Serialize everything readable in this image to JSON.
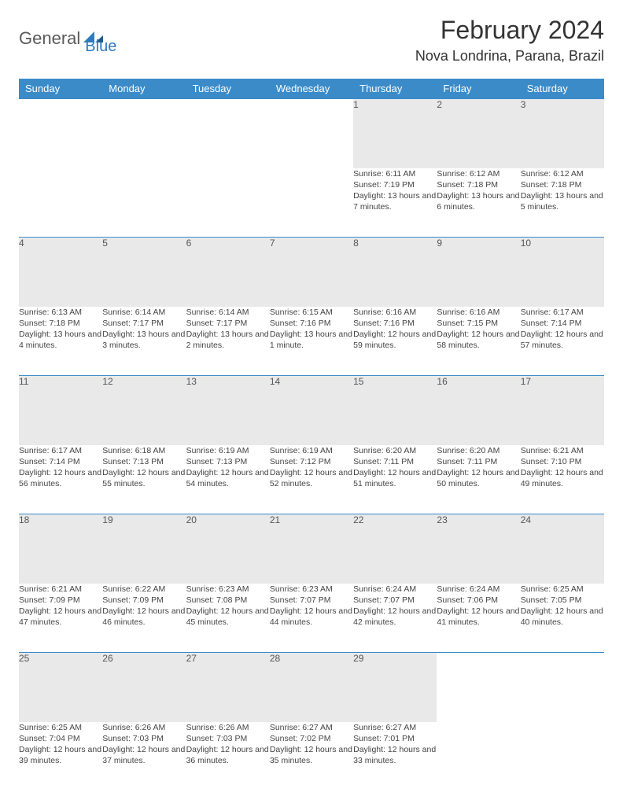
{
  "brand": {
    "part1": "General",
    "part2": "Blue"
  },
  "title": "February 2024",
  "location": "Nova Londrina, Parana, Brazil",
  "colors": {
    "header_bg": "#3b8bc9",
    "header_text": "#ffffff",
    "daynum_bg": "#e9e9e9",
    "border": "#3b8bc9",
    "brand_gray": "#5a5a5a",
    "brand_blue": "#2f7abf",
    "page_bg": "#ffffff"
  },
  "weekdays": [
    "Sunday",
    "Monday",
    "Tuesday",
    "Wednesday",
    "Thursday",
    "Friday",
    "Saturday"
  ],
  "weeks": [
    [
      null,
      null,
      null,
      null,
      {
        "n": "1",
        "sr": "6:11 AM",
        "ss": "7:19 PM",
        "dl": "13 hours and 7 minutes."
      },
      {
        "n": "2",
        "sr": "6:12 AM",
        "ss": "7:18 PM",
        "dl": "13 hours and 6 minutes."
      },
      {
        "n": "3",
        "sr": "6:12 AM",
        "ss": "7:18 PM",
        "dl": "13 hours and 5 minutes."
      }
    ],
    [
      {
        "n": "4",
        "sr": "6:13 AM",
        "ss": "7:18 PM",
        "dl": "13 hours and 4 minutes."
      },
      {
        "n": "5",
        "sr": "6:14 AM",
        "ss": "7:17 PM",
        "dl": "13 hours and 3 minutes."
      },
      {
        "n": "6",
        "sr": "6:14 AM",
        "ss": "7:17 PM",
        "dl": "13 hours and 2 minutes."
      },
      {
        "n": "7",
        "sr": "6:15 AM",
        "ss": "7:16 PM",
        "dl": "13 hours and 1 minute."
      },
      {
        "n": "8",
        "sr": "6:16 AM",
        "ss": "7:16 PM",
        "dl": "12 hours and 59 minutes."
      },
      {
        "n": "9",
        "sr": "6:16 AM",
        "ss": "7:15 PM",
        "dl": "12 hours and 58 minutes."
      },
      {
        "n": "10",
        "sr": "6:17 AM",
        "ss": "7:14 PM",
        "dl": "12 hours and 57 minutes."
      }
    ],
    [
      {
        "n": "11",
        "sr": "6:17 AM",
        "ss": "7:14 PM",
        "dl": "12 hours and 56 minutes."
      },
      {
        "n": "12",
        "sr": "6:18 AM",
        "ss": "7:13 PM",
        "dl": "12 hours and 55 minutes."
      },
      {
        "n": "13",
        "sr": "6:19 AM",
        "ss": "7:13 PM",
        "dl": "12 hours and 54 minutes."
      },
      {
        "n": "14",
        "sr": "6:19 AM",
        "ss": "7:12 PM",
        "dl": "12 hours and 52 minutes."
      },
      {
        "n": "15",
        "sr": "6:20 AM",
        "ss": "7:11 PM",
        "dl": "12 hours and 51 minutes."
      },
      {
        "n": "16",
        "sr": "6:20 AM",
        "ss": "7:11 PM",
        "dl": "12 hours and 50 minutes."
      },
      {
        "n": "17",
        "sr": "6:21 AM",
        "ss": "7:10 PM",
        "dl": "12 hours and 49 minutes."
      }
    ],
    [
      {
        "n": "18",
        "sr": "6:21 AM",
        "ss": "7:09 PM",
        "dl": "12 hours and 47 minutes."
      },
      {
        "n": "19",
        "sr": "6:22 AM",
        "ss": "7:09 PM",
        "dl": "12 hours and 46 minutes."
      },
      {
        "n": "20",
        "sr": "6:23 AM",
        "ss": "7:08 PM",
        "dl": "12 hours and 45 minutes."
      },
      {
        "n": "21",
        "sr": "6:23 AM",
        "ss": "7:07 PM",
        "dl": "12 hours and 44 minutes."
      },
      {
        "n": "22",
        "sr": "6:24 AM",
        "ss": "7:07 PM",
        "dl": "12 hours and 42 minutes."
      },
      {
        "n": "23",
        "sr": "6:24 AM",
        "ss": "7:06 PM",
        "dl": "12 hours and 41 minutes."
      },
      {
        "n": "24",
        "sr": "6:25 AM",
        "ss": "7:05 PM",
        "dl": "12 hours and 40 minutes."
      }
    ],
    [
      {
        "n": "25",
        "sr": "6:25 AM",
        "ss": "7:04 PM",
        "dl": "12 hours and 39 minutes."
      },
      {
        "n": "26",
        "sr": "6:26 AM",
        "ss": "7:03 PM",
        "dl": "12 hours and 37 minutes."
      },
      {
        "n": "27",
        "sr": "6:26 AM",
        "ss": "7:03 PM",
        "dl": "12 hours and 36 minutes."
      },
      {
        "n": "28",
        "sr": "6:27 AM",
        "ss": "7:02 PM",
        "dl": "12 hours and 35 minutes."
      },
      {
        "n": "29",
        "sr": "6:27 AM",
        "ss": "7:01 PM",
        "dl": "12 hours and 33 minutes."
      },
      null,
      null
    ]
  ],
  "labels": {
    "sunrise": "Sunrise:",
    "sunset": "Sunset:",
    "daylight": "Daylight:"
  }
}
